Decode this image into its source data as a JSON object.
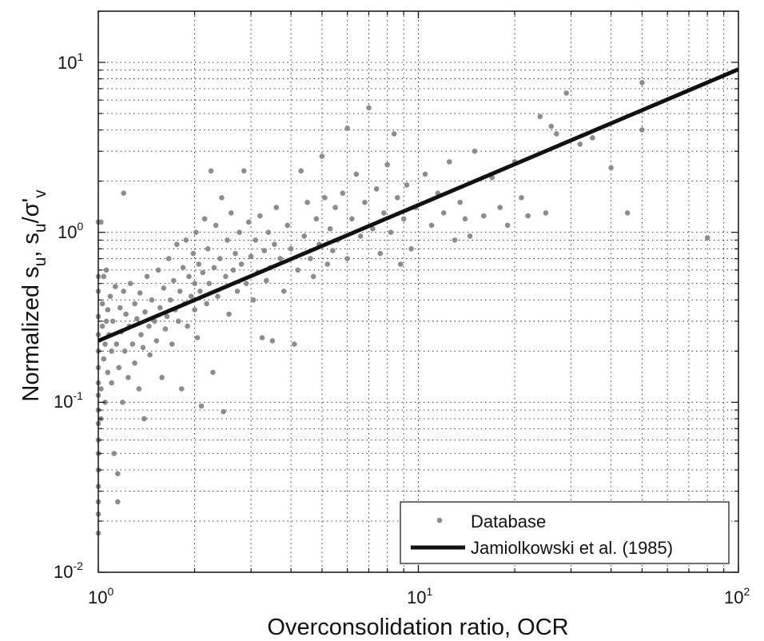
{
  "chart_data": {
    "type": "scatter",
    "xlabel": "Overconsolidation ratio, OCR",
    "ylabel": "Normalized s_u, s_u/σ'_v",
    "ylabel_parts": {
      "a": "Normalized s",
      "b": "u",
      "c": ", s",
      "d": "u",
      "e": "/σ'",
      "f": "v"
    },
    "x_scale": "log",
    "y_scale": "log",
    "xlim": [
      1,
      100
    ],
    "ylim": [
      0.01,
      20
    ],
    "grid": true,
    "legend_position": "bottom-right",
    "x_ticks": [
      {
        "base": "10",
        "exp": "0",
        "value": 1
      },
      {
        "base": "10",
        "exp": "1",
        "value": 10
      },
      {
        "base": "10",
        "exp": "2",
        "value": 100
      }
    ],
    "y_ticks": [
      {
        "base": "10",
        "exp": "-2",
        "value": 0.01
      },
      {
        "base": "10",
        "exp": "-1",
        "value": 0.1
      },
      {
        "base": "10",
        "exp": "0",
        "value": 1
      },
      {
        "base": "10",
        "exp": "1",
        "value": 10
      }
    ],
    "series": [
      {
        "name": "Database",
        "kind": "scatter",
        "color": "#8c8c8c",
        "points": [
          [
            1.0,
            0.017
          ],
          [
            1.0,
            0.022
          ],
          [
            1.0,
            0.026
          ],
          [
            1.0,
            0.032
          ],
          [
            1.0,
            0.04
          ],
          [
            1.0,
            0.05
          ],
          [
            1.0,
            0.06
          ],
          [
            1.0,
            0.075
          ],
          [
            1.0,
            0.09
          ],
          [
            1.0,
            0.11
          ],
          [
            1.0,
            0.13
          ],
          [
            1.0,
            0.16
          ],
          [
            1.0,
            0.2
          ],
          [
            1.0,
            0.25
          ],
          [
            1.0,
            0.32
          ],
          [
            1.0,
            0.45
          ],
          [
            1.0,
            0.55
          ],
          [
            1.0,
            1.15
          ],
          [
            1.02,
            1.15
          ],
          [
            1.02,
            0.08
          ],
          [
            1.02,
            0.12
          ],
          [
            1.03,
            0.28
          ],
          [
            1.03,
            0.38
          ],
          [
            1.04,
            0.18
          ],
          [
            1.04,
            0.55
          ],
          [
            1.05,
            0.1
          ],
          [
            1.05,
            0.22
          ],
          [
            1.06,
            0.3
          ],
          [
            1.06,
            0.6
          ],
          [
            1.07,
            0.15
          ],
          [
            1.07,
            0.35
          ],
          [
            1.08,
            0.25
          ],
          [
            1.09,
            0.42
          ],
          [
            1.1,
            0.2
          ],
          [
            1.1,
            0.13
          ],
          [
            1.11,
            0.3
          ],
          [
            1.12,
            0.05
          ],
          [
            1.13,
            0.48
          ],
          [
            1.14,
            0.22
          ],
          [
            1.15,
            0.038
          ],
          [
            1.15,
            0.026
          ],
          [
            1.16,
            0.16
          ],
          [
            1.17,
            0.36
          ],
          [
            1.18,
            0.26
          ],
          [
            1.19,
            0.1
          ],
          [
            1.2,
            0.45
          ],
          [
            1.2,
            1.7
          ],
          [
            1.21,
            0.2
          ],
          [
            1.22,
            0.33
          ],
          [
            1.24,
            0.14
          ],
          [
            1.25,
            0.28
          ],
          [
            1.26,
            0.5
          ],
          [
            1.28,
            0.22
          ],
          [
            1.3,
            0.38
          ],
          [
            1.3,
            0.17
          ],
          [
            1.32,
            0.31
          ],
          [
            1.34,
            0.12
          ],
          [
            1.35,
            0.44
          ],
          [
            1.36,
            0.25
          ],
          [
            1.38,
            0.21
          ],
          [
            1.39,
            0.08
          ],
          [
            1.4,
            0.34
          ],
          [
            1.42,
            0.55
          ],
          [
            1.44,
            0.28
          ],
          [
            1.45,
            0.19
          ],
          [
            1.47,
            0.4
          ],
          [
            1.5,
            0.3
          ],
          [
            1.52,
            0.23
          ],
          [
            1.54,
            0.6
          ],
          [
            1.56,
            0.36
          ],
          [
            1.58,
            0.14
          ],
          [
            1.6,
            0.47
          ],
          [
            1.62,
            0.27
          ],
          [
            1.64,
            0.32
          ],
          [
            1.66,
            0.7
          ],
          [
            1.68,
            0.4
          ],
          [
            1.7,
            0.22
          ],
          [
            1.72,
            0.52
          ],
          [
            1.74,
            0.35
          ],
          [
            1.76,
            0.85
          ],
          [
            1.78,
            0.3
          ],
          [
            1.8,
            0.45
          ],
          [
            1.82,
            0.12
          ],
          [
            1.84,
            0.62
          ],
          [
            1.86,
            0.38
          ],
          [
            1.88,
            0.9
          ],
          [
            1.9,
            0.28
          ],
          [
            1.92,
            0.55
          ],
          [
            1.95,
            0.42
          ],
          [
            1.98,
            0.75
          ],
          [
            2.0,
            0.5
          ],
          [
            2.0,
            0.35
          ],
          [
            2.02,
            1.0
          ],
          [
            2.04,
            0.24
          ],
          [
            2.06,
            0.65
          ],
          [
            2.08,
            0.45
          ],
          [
            2.1,
            0.095
          ],
          [
            2.12,
            0.58
          ],
          [
            2.15,
            1.2
          ],
          [
            2.18,
            0.38
          ],
          [
            2.2,
            0.8
          ],
          [
            2.22,
            0.5
          ],
          [
            2.25,
            2.3
          ],
          [
            2.28,
            0.15
          ],
          [
            2.3,
            0.62
          ],
          [
            2.33,
            1.1
          ],
          [
            2.36,
            0.42
          ],
          [
            2.4,
            0.7
          ],
          [
            2.43,
            1.6
          ],
          [
            2.46,
            0.088
          ],
          [
            2.5,
            0.55
          ],
          [
            2.53,
            0.9
          ],
          [
            2.56,
            0.33
          ],
          [
            2.6,
            1.3
          ],
          [
            2.64,
            0.6
          ],
          [
            2.68,
            0.75
          ],
          [
            2.72,
            0.45
          ],
          [
            2.76,
            1.0
          ],
          [
            2.8,
            0.65
          ],
          [
            2.85,
            2.3
          ],
          [
            2.9,
            0.5
          ],
          [
            2.95,
            1.15
          ],
          [
            3.0,
            0.72
          ],
          [
            3.05,
            0.4
          ],
          [
            3.1,
            0.9
          ],
          [
            3.15,
            0.58
          ],
          [
            3.2,
            1.25
          ],
          [
            3.25,
            0.24
          ],
          [
            3.3,
            0.78
          ],
          [
            3.35,
            0.52
          ],
          [
            3.4,
            1.0
          ],
          [
            3.45,
            0.62
          ],
          [
            3.5,
            0.23
          ],
          [
            3.55,
            0.85
          ],
          [
            3.6,
            1.4
          ],
          [
            3.7,
            0.7
          ],
          [
            3.8,
            0.45
          ],
          [
            3.9,
            1.1
          ],
          [
            4.0,
            0.8
          ],
          [
            4.1,
            0.22
          ],
          [
            4.2,
            0.6
          ],
          [
            4.3,
            2.3
          ],
          [
            4.4,
            0.95
          ],
          [
            4.5,
            1.5
          ],
          [
            4.6,
            0.7
          ],
          [
            4.7,
            0.55
          ],
          [
            4.8,
            1.2
          ],
          [
            4.9,
            0.85
          ],
          [
            5.0,
            2.8
          ],
          [
            5.1,
            1.6
          ],
          [
            5.2,
            0.65
          ],
          [
            5.3,
            1.05
          ],
          [
            5.4,
            0.78
          ],
          [
            5.5,
            1.4
          ],
          [
            5.6,
            0.9
          ],
          [
            5.8,
            1.7
          ],
          [
            6.0,
            4.1
          ],
          [
            6.0,
            0.7
          ],
          [
            6.2,
            1.2
          ],
          [
            6.4,
            2.2
          ],
          [
            6.6,
            0.95
          ],
          [
            6.8,
            1.5
          ],
          [
            7.0,
            5.4
          ],
          [
            7.2,
            1.05
          ],
          [
            7.4,
            1.8
          ],
          [
            7.6,
            0.75
          ],
          [
            7.8,
            1.3
          ],
          [
            8.0,
            2.5
          ],
          [
            8.2,
            1.0
          ],
          [
            8.4,
            3.8
          ],
          [
            8.6,
            1.6
          ],
          [
            8.8,
            0.65
          ],
          [
            9.0,
            1.2
          ],
          [
            9.2,
            1.9
          ],
          [
            9.5,
            0.8
          ],
          [
            9.8,
            1.4
          ],
          [
            10.5,
            2.2
          ],
          [
            11.0,
            1.1
          ],
          [
            11.5,
            1.7
          ],
          [
            12.0,
            1.3
          ],
          [
            12.5,
            2.6
          ],
          [
            13.0,
            0.9
          ],
          [
            13.5,
            1.5
          ],
          [
            14.0,
            1.2
          ],
          [
            14.5,
            0.95
          ],
          [
            15.0,
            3.0
          ],
          [
            16.0,
            1.25
          ],
          [
            17.0,
            2.1
          ],
          [
            18.0,
            1.4
          ],
          [
            19.0,
            1.1
          ],
          [
            20.0,
            2.6
          ],
          [
            21.0,
            1.6
          ],
          [
            22.0,
            1.25
          ],
          [
            24.0,
            4.8
          ],
          [
            25.0,
            1.3
          ],
          [
            26.0,
            4.2
          ],
          [
            27.0,
            3.8
          ],
          [
            29.0,
            6.6
          ],
          [
            32.0,
            3.3
          ],
          [
            35.0,
            3.6
          ],
          [
            40.0,
            2.4
          ],
          [
            45.0,
            1.3
          ],
          [
            50.0,
            7.6
          ],
          [
            50.0,
            4.0
          ],
          [
            80.0,
            0.93
          ]
        ]
      },
      {
        "name": "Jamiolkowski et al. (1985)",
        "kind": "line",
        "color": "#111111",
        "x": [
          1,
          100
        ],
        "y": [
          0.23,
          9.1
        ]
      }
    ]
  }
}
